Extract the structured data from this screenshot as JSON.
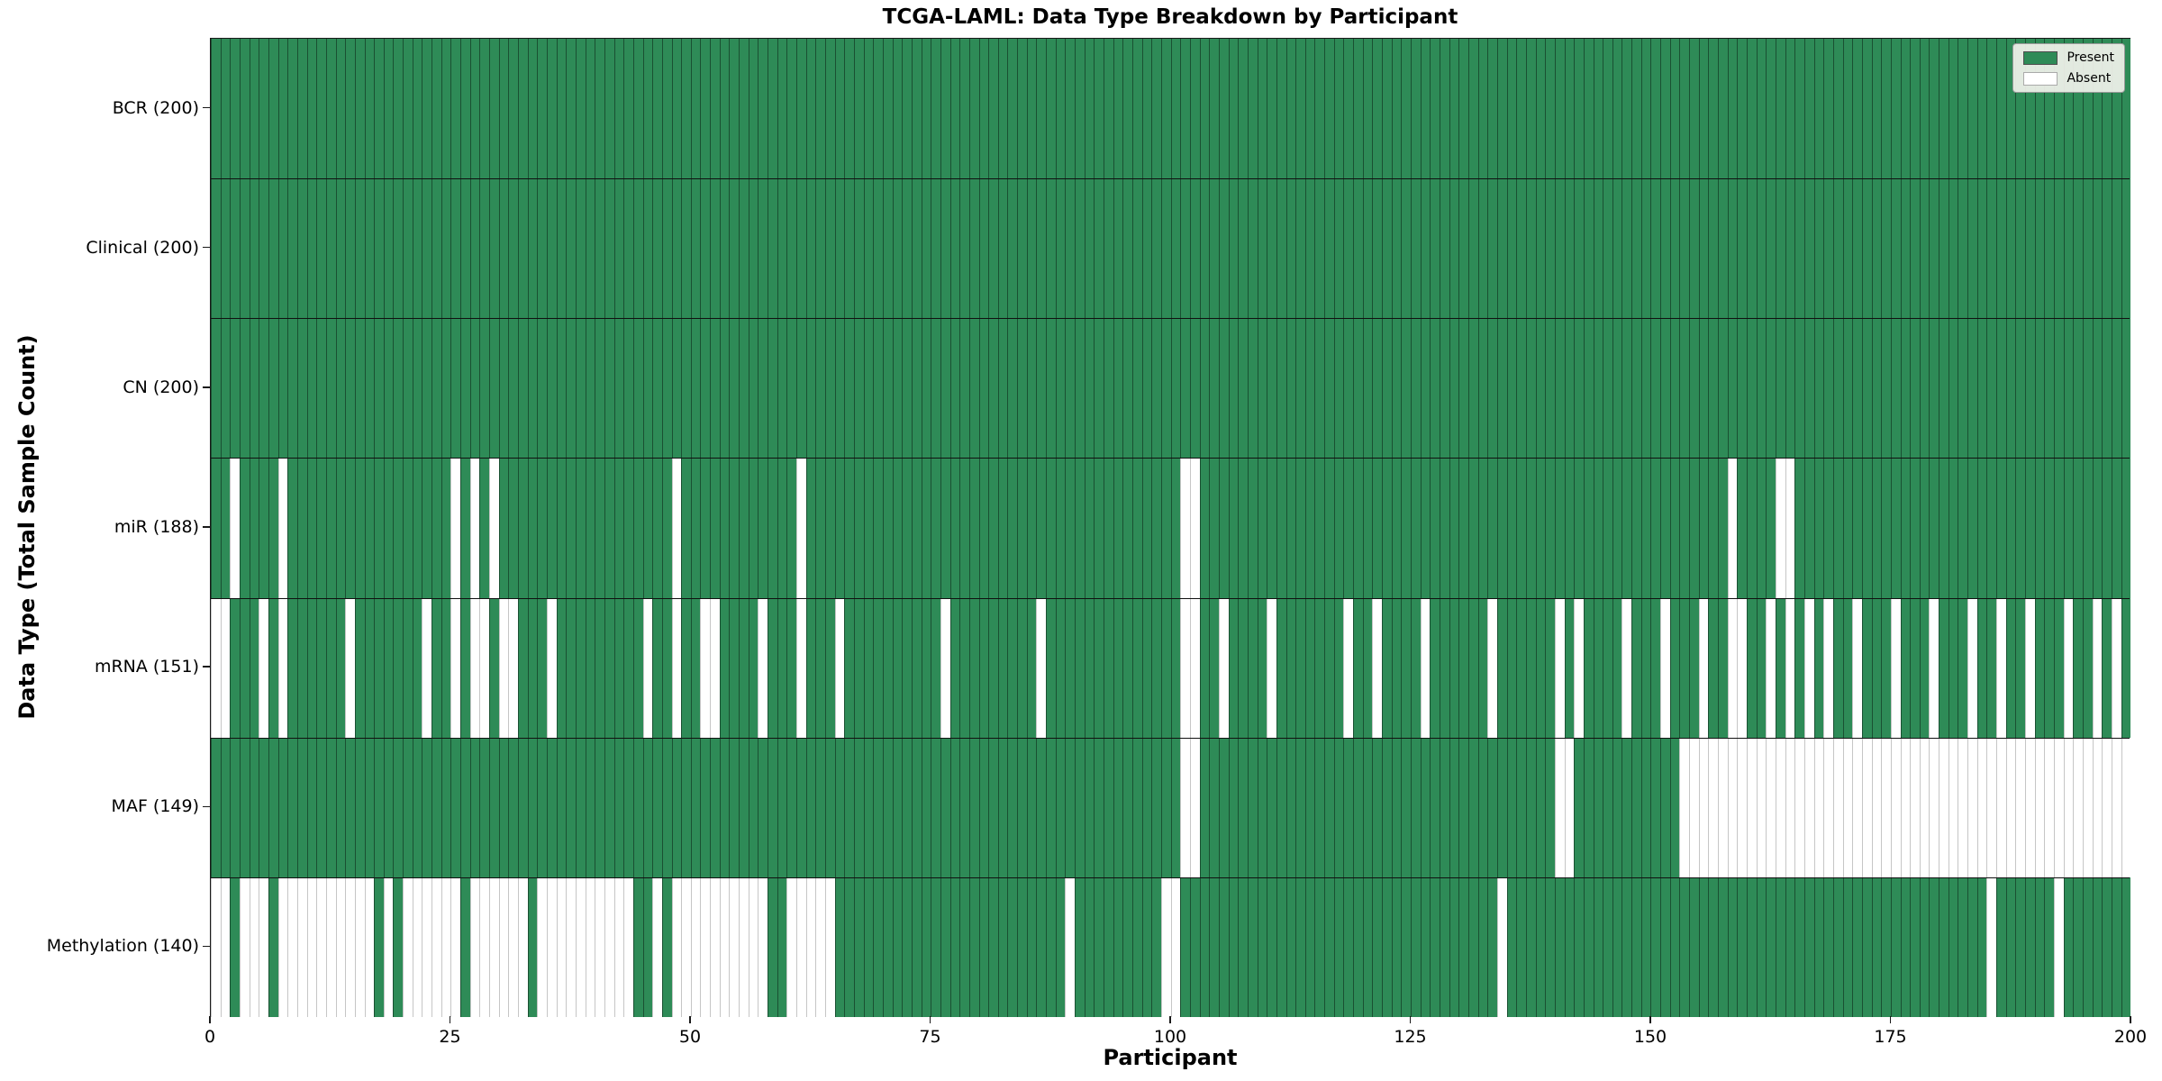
{
  "chart_data": {
    "type": "heatmap",
    "title": "TCGA-LAML: Data Type Breakdown by Participant",
    "xlabel": "Participant",
    "ylabel": "Data Type (Total Sample Count)",
    "n_participants": 200,
    "x_ticks": [
      0,
      25,
      50,
      75,
      100,
      125,
      150,
      175,
      200
    ],
    "legend": {
      "present_label": "Present",
      "absent_label": "Absent"
    },
    "colors": {
      "present": "#2e8b57",
      "absent": "#ffffff"
    },
    "rows": [
      {
        "name": "bcr",
        "label": "BCR (200)",
        "present_count": 200,
        "absent_participants": []
      },
      {
        "name": "clinical",
        "label": "Clinical (200)",
        "present_count": 200,
        "absent_participants": []
      },
      {
        "name": "cn",
        "label": "CN (200)",
        "present_count": 200,
        "absent_participants": []
      },
      {
        "name": "mir",
        "label": "miR (188)",
        "present_count": 188,
        "absent_participants": [
          2,
          7,
          25,
          27,
          29,
          48,
          61,
          101,
          102,
          158,
          163,
          164
        ]
      },
      {
        "name": "mrna",
        "label": "mRNA (151)",
        "present_count": 151,
        "absent_participants": [
          0,
          1,
          5,
          7,
          14,
          22,
          25,
          27,
          28,
          30,
          31,
          35,
          45,
          48,
          51,
          52,
          57,
          61,
          65,
          76,
          86,
          101,
          102,
          105,
          110,
          118,
          121,
          126,
          133,
          140,
          142,
          147,
          151,
          155,
          158,
          159,
          162,
          164,
          166,
          168,
          171,
          175,
          179,
          183,
          186,
          189,
          193,
          196,
          198
        ]
      },
      {
        "name": "maf",
        "label": "MAF (149)",
        "present_count": 149,
        "absent_participants": [
          101,
          102,
          140,
          141,
          153,
          154,
          155,
          156,
          157,
          158,
          159,
          160,
          161,
          162,
          163,
          164,
          165,
          166,
          167,
          168,
          169,
          170,
          171,
          172,
          173,
          174,
          175,
          176,
          177,
          178,
          179,
          180,
          181,
          182,
          183,
          184,
          185,
          186,
          187,
          188,
          189,
          190,
          191,
          192,
          193,
          194,
          195,
          196,
          197,
          198,
          199
        ]
      },
      {
        "name": "methylation",
        "label": "Methylation (140)",
        "present_count": 140,
        "absent_participants": [
          0,
          1,
          3,
          4,
          5,
          7,
          8,
          9,
          10,
          11,
          12,
          13,
          14,
          15,
          16,
          18,
          20,
          21,
          22,
          23,
          24,
          25,
          27,
          28,
          29,
          30,
          31,
          32,
          34,
          35,
          36,
          37,
          38,
          39,
          40,
          41,
          42,
          43,
          46,
          48,
          49,
          50,
          51,
          52,
          53,
          54,
          55,
          56,
          57,
          60,
          61,
          62,
          63,
          64,
          89,
          99,
          100,
          134,
          185,
          192
        ]
      }
    ]
  }
}
